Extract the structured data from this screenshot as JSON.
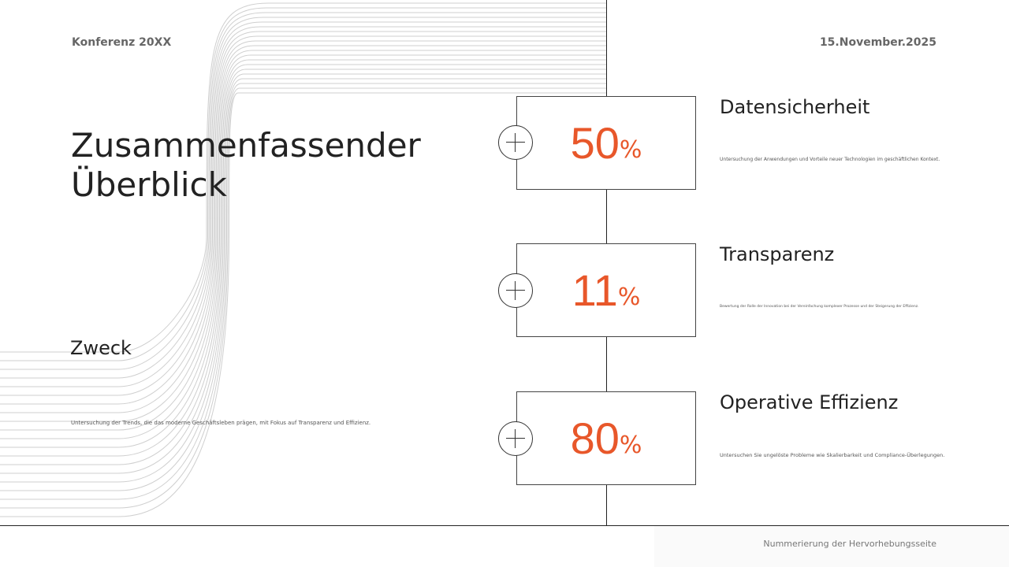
{
  "header": {
    "conference": "Konferenz 20XX",
    "date": "15.November.2025"
  },
  "title": "Zusammenfassender Überblick",
  "purpose": {
    "heading": "Zweck",
    "text": "Untersuchung der Trends, die das moderne Geschäftsleben prägen, mit Fokus auf Transparenz und Effizienz."
  },
  "items": [
    {
      "value": "50",
      "unit": "%",
      "heading": "Datensicherheit",
      "text": "Untersuchung der Anwendungen und Vorteile neuer Technologien im geschäftlichen Kontext."
    },
    {
      "value": "11",
      "unit": "%",
      "heading": "Transparenz",
      "text": "Bewertung der Rolle der Innovation bei der Vereinfachung komplexer Prozesse und der Steigerung der Effizienz."
    },
    {
      "value": "80",
      "unit": "%",
      "heading": "Operative Effizienz",
      "text": "Untersuchen Sie ungelöste Probleme wie Skalierbarkeit und Compliance-Überlegungen."
    }
  ],
  "footer": {
    "page_label": "Nummerierung der Hervorhebungsseite"
  },
  "colors": {
    "accent": "#e8572a"
  }
}
